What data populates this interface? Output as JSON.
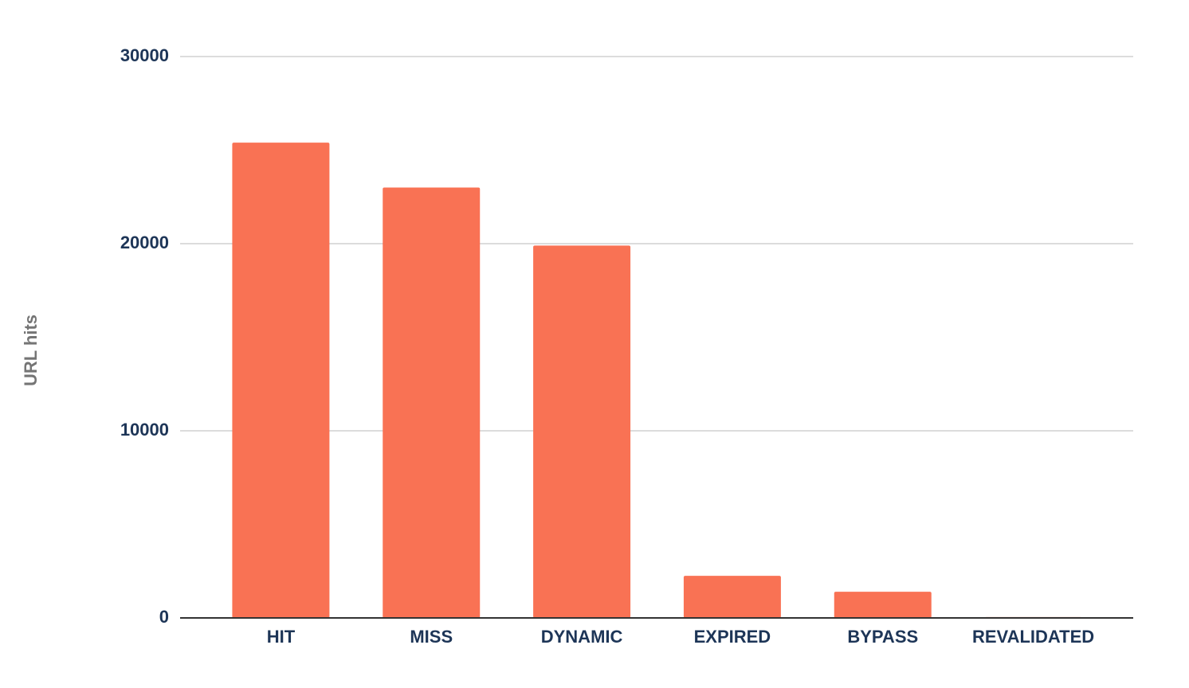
{
  "chart_data": {
    "type": "bar",
    "y_label": "URL hits",
    "categories": [
      "HIT",
      "MISS",
      "DYNAMIC",
      "EXPIRED",
      "BYPASS",
      "REVALIDATED"
    ],
    "values": [
      25400,
      23000,
      19900,
      2250,
      1400,
      50
    ],
    "color": "#f97254",
    "ylim": [
      0,
      30000
    ],
    "yticks": [
      0,
      10000,
      20000,
      30000
    ],
    "grid": true
  }
}
